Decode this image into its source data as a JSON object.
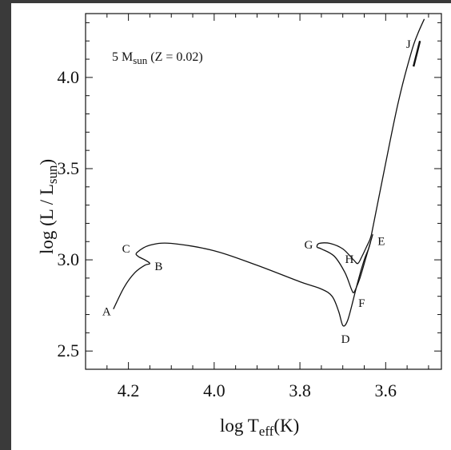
{
  "chart_data": {
    "type": "line",
    "title": "",
    "annotation": {
      "main": "5 M",
      "sub": "sun",
      "rest": " (Z = 0.02)"
    },
    "xlabel": {
      "main": "log T",
      "sub": "eff",
      "rest": "(K)"
    },
    "ylabel": {
      "main": "log (L / L",
      "sub": "sun",
      "rest": ")"
    },
    "xlim": [
      4.3,
      3.47
    ],
    "ylim": [
      2.4,
      4.35
    ],
    "x_reversed": true,
    "x_ticks": [
      {
        "value": 4.2,
        "label": "4.2"
      },
      {
        "value": 4.0,
        "label": "4.0"
      },
      {
        "value": 3.8,
        "label": "3.8"
      },
      {
        "value": 3.6,
        "label": "3.6"
      }
    ],
    "y_ticks": [
      {
        "value": 2.5,
        "label": "2.5"
      },
      {
        "value": 3.0,
        "label": "3.0"
      },
      {
        "value": 3.5,
        "label": "3.5"
      },
      {
        "value": 4.0,
        "label": "4.0"
      }
    ],
    "grid": false,
    "series": [
      {
        "x": [
          4.235,
          4.21,
          4.185,
          4.162,
          4.15,
          4.162,
          4.178,
          4.18,
          4.15,
          4.1,
          4.0,
          3.9,
          3.8,
          3.75,
          3.725,
          3.71,
          3.7,
          3.69,
          3.68,
          3.665,
          3.65,
          3.64,
          3.635,
          3.63
        ],
        "y": [
          2.73,
          2.85,
          2.93,
          2.97,
          2.98,
          3.0,
          3.02,
          3.04,
          3.08,
          3.09,
          3.05,
          2.97,
          2.88,
          2.84,
          2.8,
          2.72,
          2.64,
          2.66,
          2.74,
          2.88,
          3.0,
          3.06,
          3.1,
          3.14
        ]
      },
      {
        "x": [
          3.635,
          3.645,
          3.66,
          3.67,
          3.675,
          3.68,
          3.695,
          3.72,
          3.75,
          3.76,
          3.755,
          3.73,
          3.7,
          3.675,
          3.665,
          3.655,
          3.645,
          3.637,
          3.633
        ],
        "y": [
          3.1,
          3.02,
          2.9,
          2.84,
          2.82,
          2.84,
          2.93,
          3.02,
          3.06,
          3.07,
          3.09,
          3.09,
          3.06,
          3.0,
          2.98,
          3.02,
          3.07,
          3.11,
          3.14
        ]
      },
      {
        "x": [
          3.633,
          3.6,
          3.57,
          3.54,
          3.525,
          3.51
        ],
        "y": [
          3.14,
          3.53,
          3.87,
          4.14,
          4.24,
          4.32
        ]
      }
    ],
    "point_labels": [
      {
        "label": "A",
        "x": 4.235,
        "y": 2.73
      },
      {
        "label": "B",
        "x": 4.15,
        "y": 2.97
      },
      {
        "label": "C",
        "x": 4.185,
        "y": 3.03
      },
      {
        "label": "D",
        "x": 3.7,
        "y": 2.64
      },
      {
        "label": "E",
        "x": 3.63,
        "y": 3.1
      },
      {
        "label": "F",
        "x": 3.675,
        "y": 2.82
      },
      {
        "label": "G",
        "x": 3.76,
        "y": 3.07
      },
      {
        "label": "H",
        "x": 3.665,
        "y": 3.0
      },
      {
        "label": "J",
        "x": 3.53,
        "y": 4.18
      }
    ]
  }
}
